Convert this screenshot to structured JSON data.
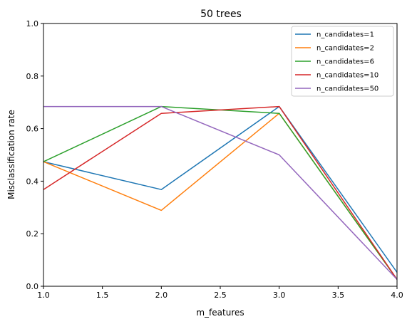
{
  "chart_data": {
    "type": "line",
    "title": "50 trees",
    "xlabel": "m_features",
    "ylabel": "Misclassification rate",
    "xlim": [
      1.0,
      4.0
    ],
    "ylim": [
      0.0,
      1.0
    ],
    "xticks": [
      "1.0",
      "1.5",
      "2.0",
      "2.5",
      "3.0",
      "3.5",
      "4.0"
    ],
    "yticks": [
      "0.0",
      "0.2",
      "0.4",
      "0.6",
      "0.8",
      "1.0"
    ],
    "grid": false,
    "legend_position": "top-right",
    "x": [
      1,
      2,
      3,
      4
    ],
    "series": [
      {
        "name": "n_candidates=1",
        "color": "#1f77b4",
        "values": [
          0.474,
          0.368,
          0.684,
          0.053
        ]
      },
      {
        "name": "n_candidates=2",
        "color": "#ff7f0e",
        "values": [
          0.474,
          0.289,
          0.658,
          0.026
        ]
      },
      {
        "name": "n_candidates=6",
        "color": "#2ca02c",
        "values": [
          0.474,
          0.684,
          0.658,
          0.026
        ]
      },
      {
        "name": "n_candidates=10",
        "color": "#d62728",
        "values": [
          0.368,
          0.658,
          0.684,
          0.026
        ]
      },
      {
        "name": "n_candidates=50",
        "color": "#9467bd",
        "values": [
          0.684,
          0.684,
          0.5,
          0.026
        ]
      }
    ]
  }
}
